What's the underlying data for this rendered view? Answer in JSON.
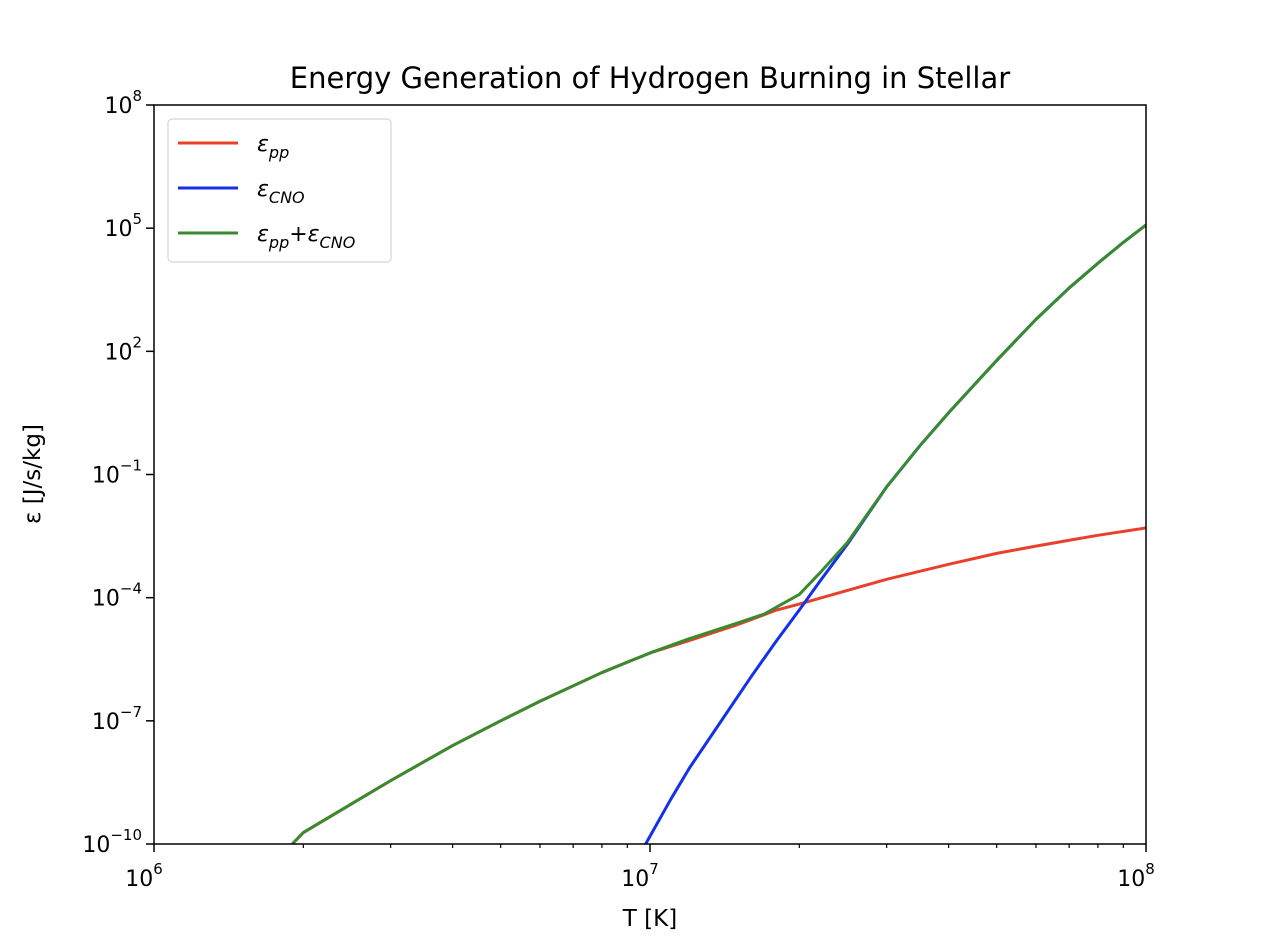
{
  "chart_data": {
    "type": "line",
    "title": "Energy Generation of Hydrogen Burning in Stellar",
    "xlabel": "T [K]",
    "ylabel": "ε [J/s/kg]",
    "xscale": "log",
    "yscale": "log",
    "xlim": [
      1000000,
      100000000
    ],
    "ylim": [
      1e-10,
      100000000
    ],
    "grid": false,
    "legend_position": "top-left",
    "x_ticks": [
      {
        "base": "10",
        "exp": "6",
        "value": 1000000
      },
      {
        "base": "10",
        "exp": "7",
        "value": 10000000
      },
      {
        "base": "10",
        "exp": "8",
        "value": 100000000
      }
    ],
    "y_ticks": [
      {
        "base": "10",
        "exp": "−10",
        "value": 1e-10
      },
      {
        "base": "10",
        "exp": "−7",
        "value": 1e-07
      },
      {
        "base": "10",
        "exp": "−4",
        "value": 0.0001
      },
      {
        "base": "10",
        "exp": "−1",
        "value": 0.1
      },
      {
        "base": "10",
        "exp": "2",
        "value": 100
      },
      {
        "base": "10",
        "exp": "5",
        "value": 100000
      },
      {
        "base": "10",
        "exp": "8",
        "value": 100000000
      }
    ],
    "series": [
      {
        "name": "ε_pp",
        "legend_symbol": "ε",
        "legend_sub": "pp",
        "color": "#e8402a",
        "x": [
          1900000,
          2000000,
          3000000,
          4000000,
          5000000,
          6000000,
          8000000,
          10000000,
          12000000,
          15000000,
          18000000,
          20000000,
          25000000,
          30000000,
          40000000,
          50000000,
          60000000,
          70000000,
          80000000,
          100000000
        ],
        "y": [
          1e-10,
          1.9e-10,
          3.5e-09,
          2.5e-08,
          1e-07,
          3e-07,
          1.5e-06,
          4.5e-06,
          9e-06,
          2.2e-05,
          5e-05,
          7e-05,
          0.00015,
          0.00028,
          0.00065,
          0.0012,
          0.0018,
          0.0025,
          0.0033,
          0.005
        ]
      },
      {
        "name": "ε_CNO",
        "legend_symbol": "ε",
        "legend_sub": "CNO",
        "color": "#1530ea",
        "x": [
          9800000,
          11000000,
          12000000,
          14000000,
          16000000,
          18000000,
          20000000,
          22000000,
          25000000,
          30000000,
          35000000,
          40000000,
          50000000,
          60000000,
          70000000,
          80000000,
          90000000,
          100000000
        ],
        "y": [
          1e-10,
          1.2e-09,
          7e-09,
          1.1e-07,
          1.2e-06,
          9e-06,
          5e-05,
          0.00025,
          0.002,
          0.05,
          0.5,
          3.2,
          60,
          600,
          3500,
          14000,
          45000,
          120000
        ]
      },
      {
        "name": "ε_pp+ε_CNO",
        "legend_symbol": "ε",
        "legend_sub": "pp",
        "legend_symbol2": "+ε",
        "legend_sub2": "CNO",
        "color": "#3a8a30",
        "x": [
          1900000,
          2000000,
          3000000,
          4000000,
          5000000,
          6000000,
          8000000,
          10000000,
          12000000,
          15000000,
          17000000,
          18000000,
          20000000,
          22000000,
          25000000,
          30000000,
          35000000,
          40000000,
          50000000,
          60000000,
          70000000,
          80000000,
          90000000,
          100000000
        ],
        "y": [
          1e-10,
          1.9e-10,
          3.5e-09,
          2.5e-08,
          1e-07,
          3e-07,
          1.5e-06,
          4.5e-06,
          1e-05,
          2.4e-05,
          4e-05,
          5.9e-05,
          0.00012,
          0.0004,
          0.0022,
          0.05,
          0.5,
          3.2,
          60,
          600,
          3500,
          14000,
          45000,
          120000
        ]
      }
    ]
  }
}
